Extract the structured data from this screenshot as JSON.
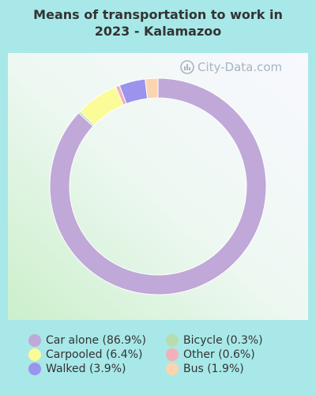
{
  "chart_data": {
    "type": "pie",
    "title_lines": [
      "Means of transportation to work in",
      "2023 - Kalamazoo"
    ],
    "donut": true,
    "slices": [
      {
        "label": "Car alone (86.9%)",
        "value": 86.9,
        "color": "#c0a8d8"
      },
      {
        "label": "Bicycle (0.3%)",
        "value": 0.3,
        "color": "#b8dcb0"
      },
      {
        "label": "Carpooled (6.4%)",
        "value": 6.4,
        "color": "#fbfb98"
      },
      {
        "label": "Other (0.6%)",
        "value": 0.6,
        "color": "#f4b0b8"
      },
      {
        "label": "Walked (3.9%)",
        "value": 3.9,
        "color": "#9a94ee"
      },
      {
        "label": "Bus (1.9%)",
        "value": 1.9,
        "color": "#fcd4b0"
      }
    ],
    "legend_position": "bottom",
    "legend_order": [
      [
        "Car alone (86.9%)",
        "Bicycle (0.3%)"
      ],
      [
        "Carpooled (6.4%)",
        "Other (0.6%)"
      ],
      [
        "Walked (3.9%)",
        "Bus (1.9%)"
      ]
    ]
  },
  "watermark": {
    "text": "City-Data.com",
    "icon": "city-data-logo-icon"
  },
  "colors": {
    "background": "#a8e8e8",
    "title": "#333333"
  }
}
